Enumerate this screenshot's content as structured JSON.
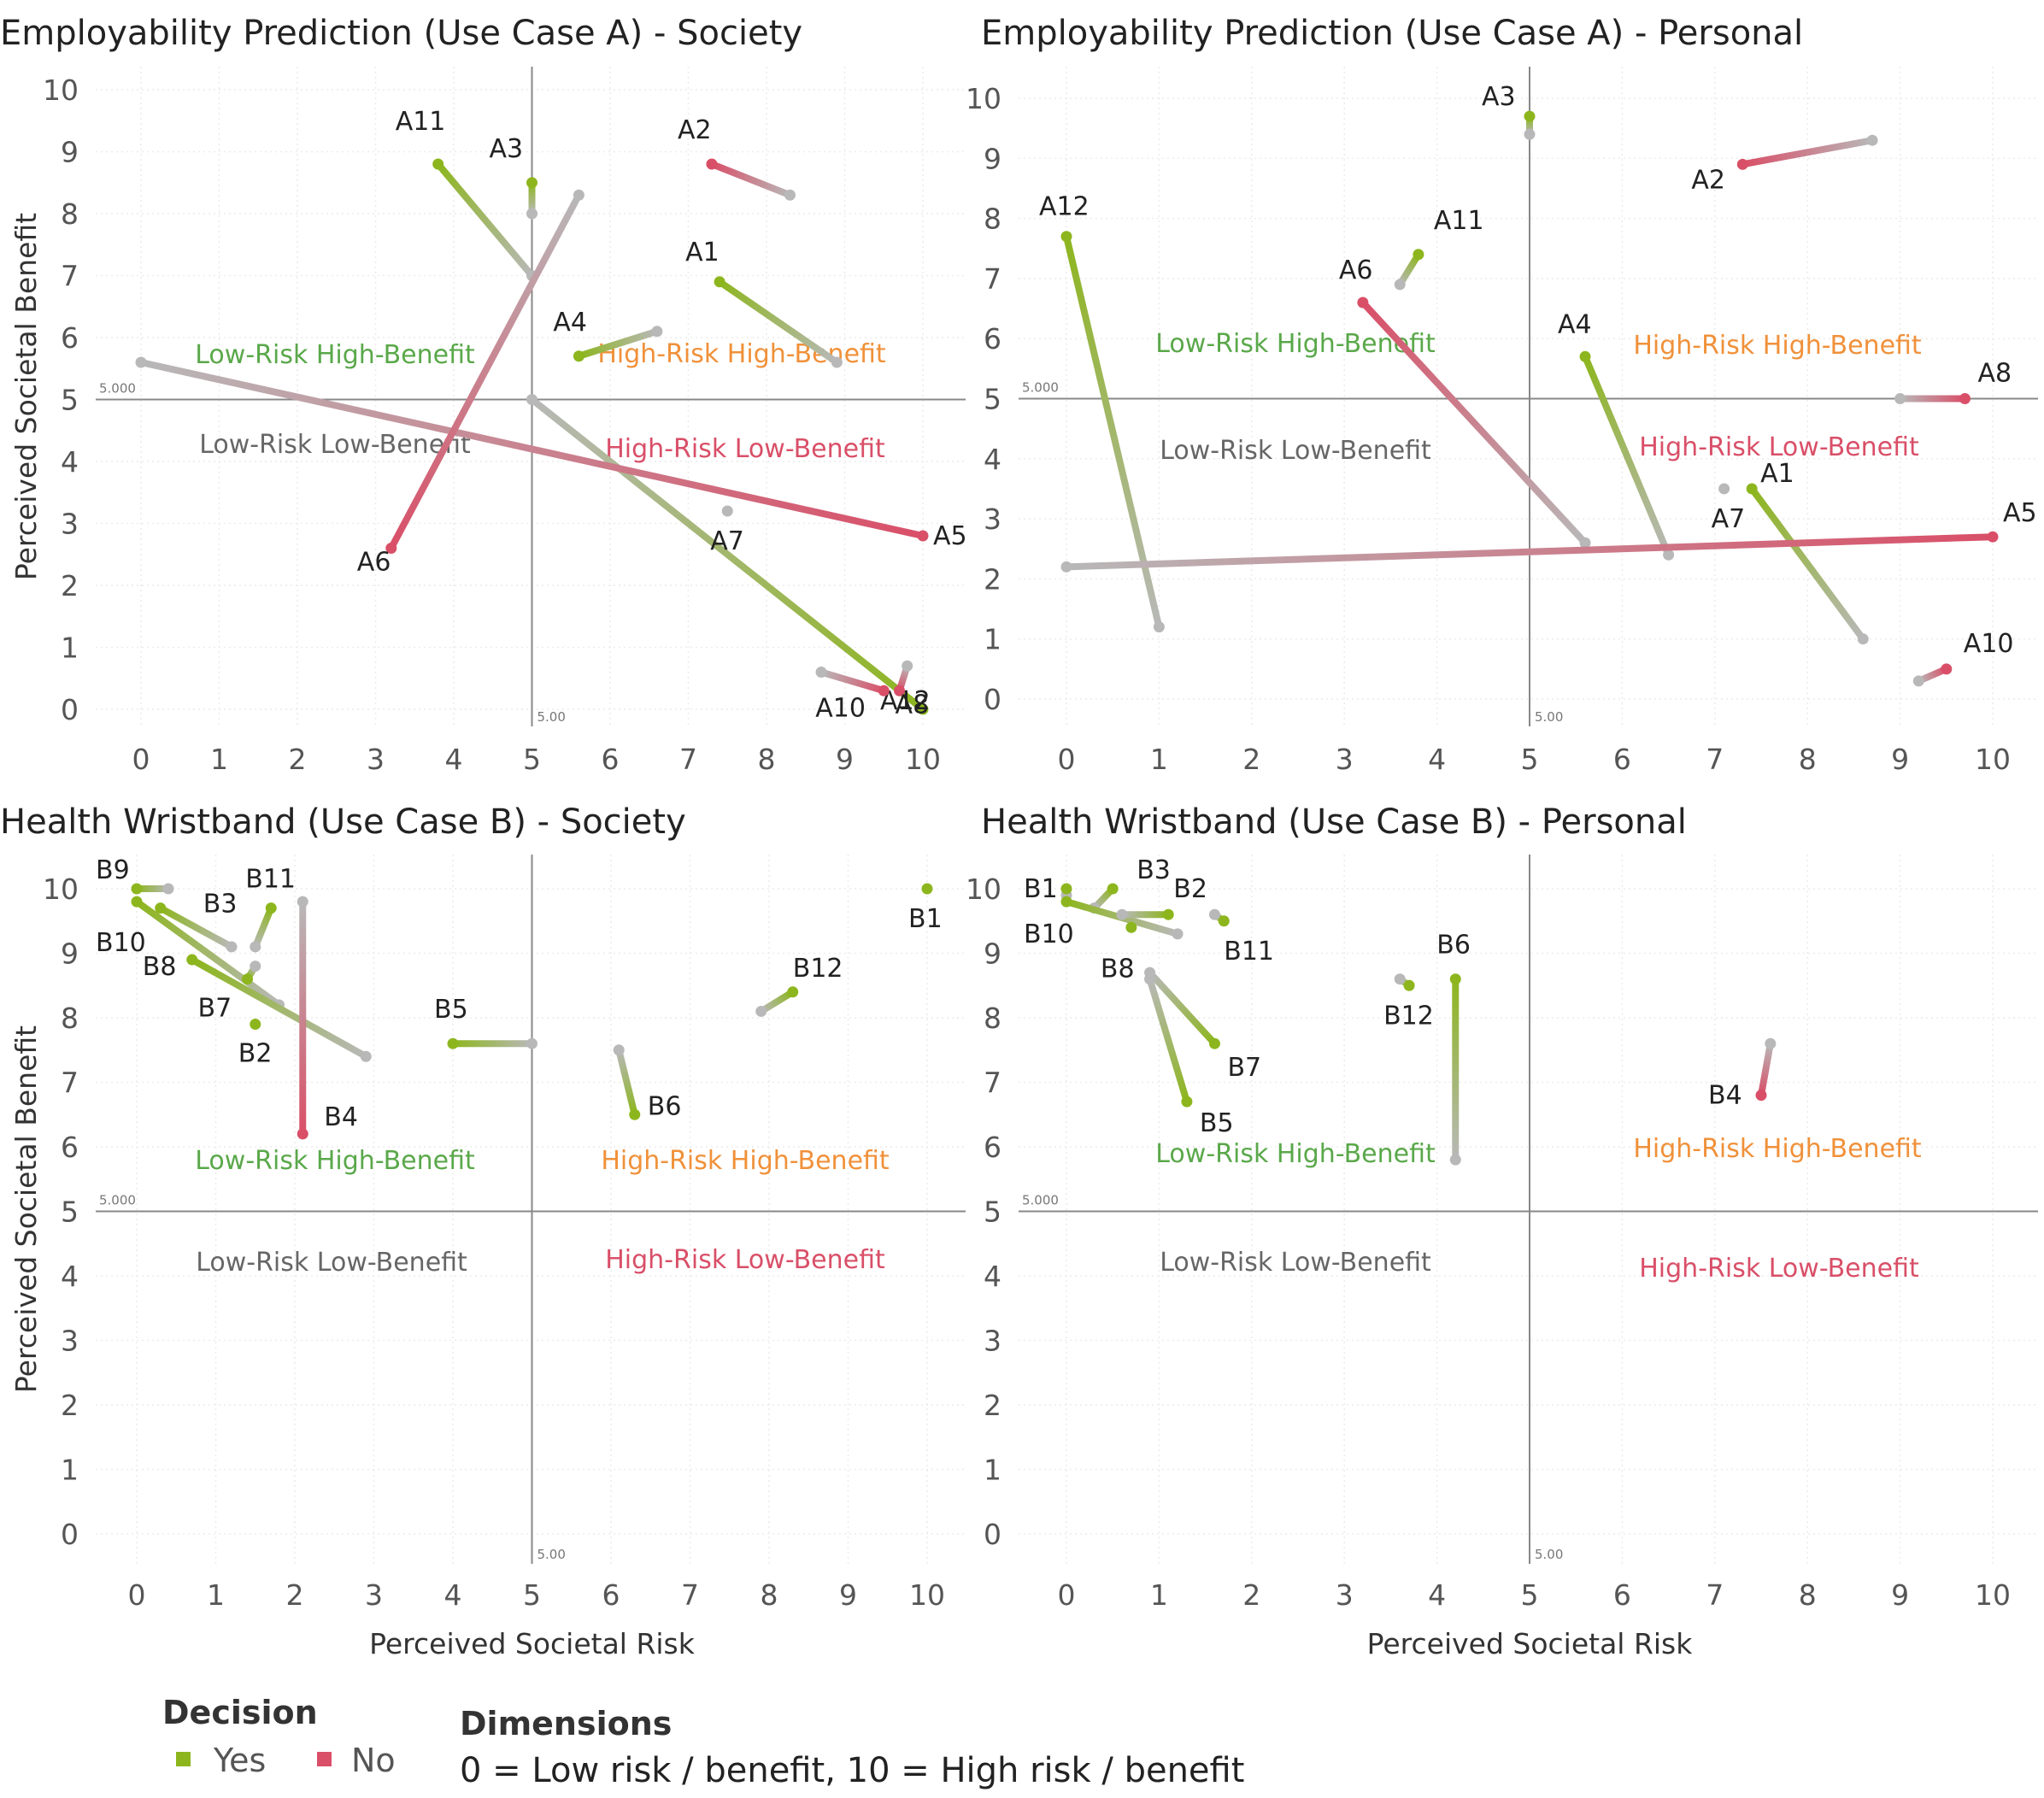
{
  "colors": {
    "yes": "#8db61e",
    "no": "#d94f68",
    "neutral": "#b8b8b8",
    "low_risk_high_benefit": "#5aa84a",
    "high_risk_high_benefit": "#f0913a",
    "high_risk_low_benefit": "#d94f68",
    "low_risk_low_benefit": "#666666",
    "grid": "#ececec",
    "ref_line": "#888888"
  },
  "shared": {
    "y_axis_label": "Perceived Societal Benefit",
    "x_axis_label": "Perceived Societal Risk",
    "ref_value_label": "5.000",
    "ref_tick_label": "5.00",
    "quadrants": {
      "lrhb": "Low-Risk High-Benefit",
      "hrhb": "High-Risk High-Benefit",
      "lrlb": "Low-Risk Low-Benefit",
      "hrlb": "High-Risk Low-Benefit"
    }
  },
  "legend": {
    "decision_title": "Decision",
    "yes_label": "Yes",
    "no_label": "No",
    "dimensions_title": "Dimensions",
    "dimensions_text": "0 = Low risk / benefit, 10 = High risk / benefit"
  },
  "chart_data": [
    {
      "type": "scatter",
      "title": "Employability Prediction (Use Case A) - Society",
      "xlabel": "",
      "ylabel": "Perceived Societal Benefit",
      "xlim": [
        0,
        10
      ],
      "ylim": [
        0,
        10
      ],
      "grid": true,
      "series": [
        {
          "id": "A12",
          "decision": "yes",
          "start": [
            10.0,
            0.0
          ],
          "end": [
            5.0,
            5.0
          ]
        },
        {
          "id": "A11",
          "decision": "yes",
          "start": [
            3.8,
            8.8
          ],
          "end": [
            5.0,
            7.0
          ]
        },
        {
          "id": "A3",
          "decision": "yes",
          "start": [
            5.0,
            8.5
          ],
          "end": [
            5.0,
            8.0
          ]
        },
        {
          "id": "A2",
          "decision": "no",
          "start": [
            7.3,
            8.8
          ],
          "end": [
            8.3,
            8.3
          ]
        },
        {
          "id": "A1",
          "decision": "yes",
          "start": [
            7.4,
            6.9
          ],
          "end": [
            8.9,
            5.6
          ]
        },
        {
          "id": "A4",
          "decision": "yes",
          "start": [
            5.6,
            5.7
          ],
          "end": [
            6.6,
            6.1
          ]
        },
        {
          "id": "A5",
          "decision": "no",
          "start": [
            10.0,
            2.8
          ],
          "end": [
            0.0,
            5.6
          ]
        },
        {
          "id": "A6",
          "decision": "no",
          "start": [
            3.2,
            2.6
          ],
          "end": [
            5.6,
            8.3
          ]
        },
        {
          "id": "A7",
          "decision": "neutral",
          "start": [
            7.5,
            3.2
          ],
          "end": [
            7.5,
            3.2
          ]
        },
        {
          "id": "A10",
          "decision": "no",
          "start": [
            9.5,
            0.3
          ],
          "end": [
            8.7,
            0.6
          ]
        },
        {
          "id": "A8",
          "decision": "no",
          "start": [
            9.7,
            0.3
          ],
          "end": [
            9.8,
            0.7
          ]
        }
      ]
    },
    {
      "type": "scatter",
      "title": "Employability Prediction (Use Case A) - Personal",
      "xlabel": "",
      "ylabel": "",
      "xlim": [
        0,
        10
      ],
      "ylim": [
        0,
        10
      ],
      "grid": true,
      "series": [
        {
          "id": "A3",
          "decision": "yes",
          "start": [
            5.0,
            9.7
          ],
          "end": [
            5.0,
            9.4
          ]
        },
        {
          "id": "A2",
          "decision": "no",
          "start": [
            7.3,
            8.9
          ],
          "end": [
            8.7,
            9.3
          ]
        },
        {
          "id": "A12",
          "decision": "yes",
          "start": [
            0.0,
            7.7
          ],
          "end": [
            1.0,
            1.2
          ]
        },
        {
          "id": "A11",
          "decision": "yes",
          "start": [
            3.8,
            7.4
          ],
          "end": [
            3.6,
            6.9
          ]
        },
        {
          "id": "A6",
          "decision": "no",
          "start": [
            3.2,
            6.6
          ],
          "end": [
            5.6,
            2.6
          ]
        },
        {
          "id": "A4",
          "decision": "yes",
          "start": [
            5.6,
            5.7
          ],
          "end": [
            6.5,
            2.4
          ]
        },
        {
          "id": "A8",
          "decision": "no",
          "start": [
            9.7,
            5.0
          ],
          "end": [
            9.0,
            5.0
          ]
        },
        {
          "id": "A1",
          "decision": "yes",
          "start": [
            7.4,
            3.5
          ],
          "end": [
            8.6,
            1.0
          ]
        },
        {
          "id": "A7",
          "decision": "neutral",
          "start": [
            7.1,
            3.5
          ],
          "end": [
            7.1,
            3.5
          ]
        },
        {
          "id": "A5",
          "decision": "no",
          "start": [
            10.0,
            2.7
          ],
          "end": [
            0.0,
            2.2
          ]
        },
        {
          "id": "A10",
          "decision": "no",
          "start": [
            9.5,
            0.5
          ],
          "end": [
            9.2,
            0.3
          ]
        }
      ]
    },
    {
      "type": "scatter",
      "title": "Health Wristband (Use Case B) - Society",
      "xlabel": "Perceived Societal Risk",
      "ylabel": "Perceived Societal Benefit",
      "xlim": [
        0,
        10
      ],
      "ylim": [
        0,
        10
      ],
      "grid": true,
      "series": [
        {
          "id": "B9",
          "decision": "yes",
          "start": [
            0.0,
            10.0
          ],
          "end": [
            0.4,
            10.0
          ]
        },
        {
          "id": "B3",
          "decision": "yes",
          "start": [
            0.3,
            9.7
          ],
          "end": [
            1.2,
            9.1
          ]
        },
        {
          "id": "B10",
          "decision": "yes",
          "start": [
            0.0,
            9.8
          ],
          "end": [
            1.8,
            8.2
          ]
        },
        {
          "id": "B11",
          "decision": "yes",
          "start": [
            1.7,
            9.7
          ],
          "end": [
            1.5,
            9.1
          ]
        },
        {
          "id": "B8",
          "decision": "yes",
          "start": [
            0.7,
            8.9
          ],
          "end": [
            2.9,
            7.4
          ]
        },
        {
          "id": "B7",
          "decision": "yes",
          "start": [
            1.4,
            8.6
          ],
          "end": [
            1.5,
            8.8
          ]
        },
        {
          "id": "B2",
          "decision": "yes",
          "start": [
            1.5,
            7.9
          ],
          "end": [
            1.5,
            7.9
          ]
        },
        {
          "id": "B4",
          "decision": "no",
          "start": [
            2.1,
            6.2
          ],
          "end": [
            2.1,
            9.8
          ]
        },
        {
          "id": "B5",
          "decision": "yes",
          "start": [
            4.0,
            7.6
          ],
          "end": [
            5.0,
            7.6
          ]
        },
        {
          "id": "B1",
          "decision": "yes",
          "start": [
            10.0,
            10.0
          ],
          "end": [
            10.0,
            10.0
          ]
        },
        {
          "id": "B12",
          "decision": "yes",
          "start": [
            8.3,
            8.4
          ],
          "end": [
            7.9,
            8.1
          ]
        },
        {
          "id": "B6",
          "decision": "yes",
          "start": [
            6.3,
            6.5
          ],
          "end": [
            6.1,
            7.5
          ]
        }
      ]
    },
    {
      "type": "scatter",
      "title": "Health Wristband (Use Case B) - Personal",
      "xlabel": "Perceived Societal Risk",
      "ylabel": "",
      "xlim": [
        0,
        10
      ],
      "ylim": [
        0,
        10
      ],
      "grid": true,
      "series": [
        {
          "id": "B1",
          "decision": "yes",
          "start": [
            0.0,
            10.0
          ],
          "end": [
            0.0,
            9.9
          ]
        },
        {
          "id": "B3",
          "decision": "yes",
          "start": [
            0.5,
            10.0
          ],
          "end": [
            0.3,
            9.7
          ]
        },
        {
          "id": "B10",
          "decision": "yes",
          "start": [
            0.0,
            9.8
          ],
          "end": [
            1.2,
            9.3
          ]
        },
        {
          "id": "B2",
          "decision": "yes",
          "start": [
            1.1,
            9.6
          ],
          "end": [
            0.6,
            9.6
          ]
        },
        {
          "id": "B8",
          "decision": "yes",
          "start": [
            0.7,
            9.4
          ],
          "end": [
            0.7,
            9.4
          ]
        },
        {
          "id": "B11",
          "decision": "yes",
          "start": [
            1.7,
            9.5
          ],
          "end": [
            1.6,
            9.6
          ]
        },
        {
          "id": "B7",
          "decision": "yes",
          "start": [
            1.6,
            7.6
          ],
          "end": [
            0.9,
            8.7
          ]
        },
        {
          "id": "B5",
          "decision": "yes",
          "start": [
            1.3,
            6.7
          ],
          "end": [
            0.9,
            8.6
          ]
        },
        {
          "id": "B12",
          "decision": "yes",
          "start": [
            3.7,
            8.5
          ],
          "end": [
            3.6,
            8.6
          ]
        },
        {
          "id": "B6",
          "decision": "yes",
          "start": [
            4.2,
            8.6
          ],
          "end": [
            4.2,
            5.8
          ]
        },
        {
          "id": "B4",
          "decision": "no",
          "start": [
            7.5,
            6.8
          ],
          "end": [
            7.6,
            7.6
          ]
        }
      ]
    }
  ]
}
